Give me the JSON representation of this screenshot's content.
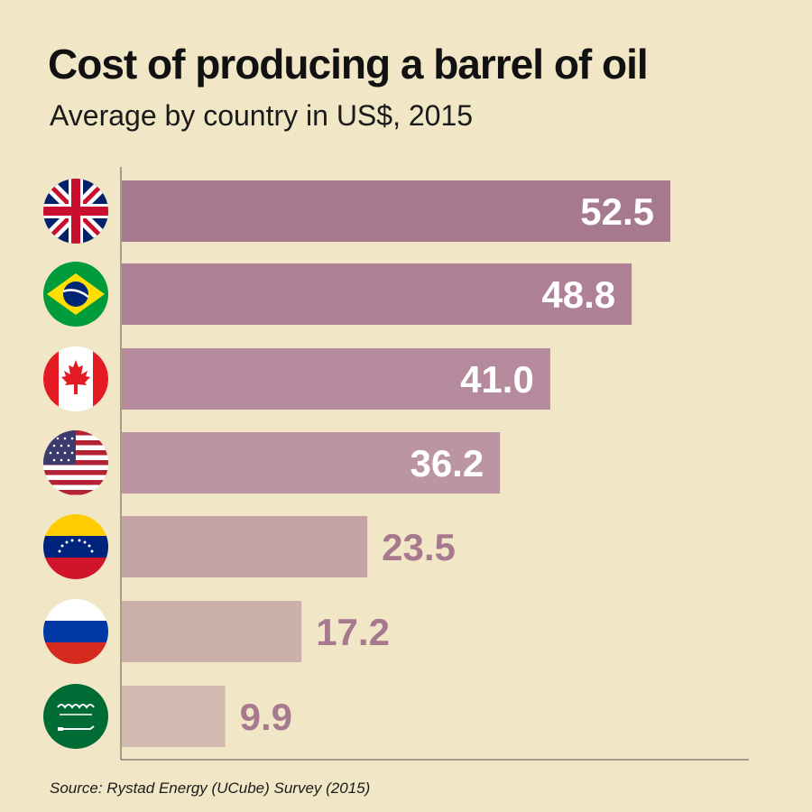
{
  "title": "Cost of producing a barrel of oil",
  "subtitle": "Average by country in US$,  2015",
  "source": "Source: Rystad Energy (UCube) Survey (2015)",
  "colors": {
    "background": "#f1e7c7",
    "bars": [
      "#a6798f",
      "#ae8196",
      "#b48a9c",
      "#bc95a3",
      "#c4a4a6",
      "#cbb0aa",
      "#d2bab1"
    ],
    "label_inside": "#ffffff",
    "label_outside": "#a6798f",
    "axis": "#555555"
  },
  "chart_data": {
    "type": "bar",
    "orientation": "horizontal",
    "categories": [
      "United Kingdom",
      "Brazil",
      "Canada",
      "United States",
      "Venezuela",
      "Russia",
      "Saudi Arabia"
    ],
    "category_icons": [
      "uk-flag-icon",
      "brazil-flag-icon",
      "canada-flag-icon",
      "usa-flag-icon",
      "venezuela-flag-icon",
      "russia-flag-icon",
      "saudi-arabia-flag-icon"
    ],
    "values": [
      52.5,
      48.8,
      41.0,
      36.2,
      23.5,
      17.2,
      9.9
    ],
    "value_labels": [
      "52.5",
      "48.8",
      "41.0",
      "36.2",
      "23.5",
      "17.2",
      "9.9"
    ],
    "title": "Cost of producing a barrel of oil",
    "subtitle": "Average by country in US$,  2015",
    "xlim": [
      0,
      60
    ],
    "grid": false,
    "legend": "none"
  }
}
